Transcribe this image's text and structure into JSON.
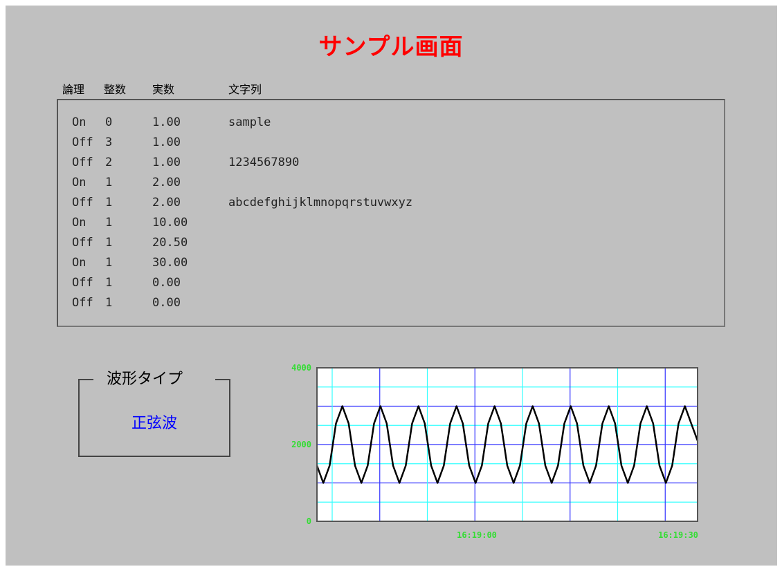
{
  "title": "サンプル画面",
  "columns": {
    "bool": "論理",
    "int": "整数",
    "real": "実数",
    "str": "文字列"
  },
  "rows": [
    {
      "bool": "On",
      "int": "0",
      "real": "1.00",
      "str": "sample"
    },
    {
      "bool": "Off",
      "int": "3",
      "real": "1.00",
      "str": ""
    },
    {
      "bool": "Off",
      "int": "2",
      "real": "1.00",
      "str": "1234567890"
    },
    {
      "bool": "On",
      "int": "1",
      "real": "2.00",
      "str": ""
    },
    {
      "bool": "Off",
      "int": "1",
      "real": "2.00",
      "str": "abcdefghijklmnopqrstuvwxyz"
    },
    {
      "bool": "On",
      "int": "1",
      "real": "10.00",
      "str": ""
    },
    {
      "bool": "Off",
      "int": "1",
      "real": "20.50",
      "str": ""
    },
    {
      "bool": "On",
      "int": "1",
      "real": "30.00",
      "str": ""
    },
    {
      "bool": "Off",
      "int": "1",
      "real": "0.00",
      "str": ""
    },
    {
      "bool": "Off",
      "int": "1",
      "real": "0.00",
      "str": ""
    }
  ],
  "wave_type": {
    "label": "波形タイプ",
    "value": "正弦波"
  },
  "chart_data": {
    "type": "line",
    "ylim": [
      0,
      4000
    ],
    "yticks": [
      "0",
      "2000",
      "4000"
    ],
    "xticks": [
      "16:19:00",
      "16:19:30"
    ],
    "series": [
      {
        "color": "#000000",
        "x": [
          0,
          1,
          2,
          3,
          4,
          5,
          6,
          7,
          8,
          9,
          10,
          11,
          12,
          13,
          14,
          15,
          16,
          17,
          18,
          19,
          20,
          21,
          22,
          23,
          24,
          25,
          26,
          27,
          28,
          29,
          30,
          31,
          32,
          33,
          34,
          35,
          36,
          37,
          38,
          39,
          40,
          41,
          42,
          43,
          44,
          45,
          46,
          47,
          48,
          49,
          50,
          51,
          52,
          53,
          54,
          55,
          56,
          57,
          58,
          59,
          60
        ],
        "y": [
          1450,
          1000,
          1450,
          2550,
          3000,
          2550,
          1450,
          1000,
          1450,
          2550,
          3000,
          2550,
          1450,
          1000,
          1450,
          2550,
          3000,
          2550,
          1450,
          1000,
          1450,
          2550,
          3000,
          2550,
          1450,
          1000,
          1450,
          2550,
          3000,
          2550,
          1450,
          1000,
          1450,
          2550,
          3000,
          2550,
          1450,
          1000,
          1450,
          2550,
          3000,
          2550,
          1450,
          1000,
          1450,
          2550,
          3000,
          2550,
          1450,
          1000,
          1450,
          2550,
          3000,
          2550,
          1450,
          1000,
          1450,
          2550,
          3000,
          2550,
          2100
        ]
      }
    ],
    "plot_bg": "#ffffff",
    "grid_major_color": "#3333ff",
    "grid_minor_color": "#33ffff",
    "axis_label_color": "#33dd33"
  }
}
